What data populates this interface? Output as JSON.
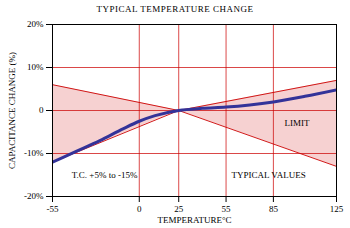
{
  "chart_data": {
    "type": "line",
    "title": "TYPICAL TEMPERATURE CHANGE",
    "x_label": "TEMPERATURE°C",
    "y_label": "CAPACITANCE CHANGE (%)",
    "xlim": [
      -55,
      125
    ],
    "xticks": [
      -55,
      0,
      25,
      55,
      85,
      125
    ],
    "ylim": [
      -20,
      20
    ],
    "yticks": [
      {
        "value": 20,
        "label": "20%"
      },
      {
        "value": 10,
        "label": "10%"
      },
      0,
      {
        "value": -10,
        "label": "-10%"
      },
      {
        "value": -20,
        "label": "-20%"
      }
    ],
    "grid": true,
    "series": [
      {
        "name": "LIMIT",
        "type": "area",
        "color": "#cc0000",
        "x": [
          -55,
          25,
          125
        ],
        "values": [
          6,
          0,
          7
        ],
        "low": [
          -12,
          0,
          -13
        ]
      },
      {
        "name": "TYPICAL VALUES",
        "type": "line",
        "color": "#333399",
        "x": [
          -55,
          -40,
          -25,
          -10,
          0,
          10,
          25,
          40,
          55,
          70,
          85,
          105,
          125
        ],
        "values": [
          -12,
          -9.5,
          -7,
          -4.2,
          -2.5,
          -1.2,
          0,
          0.5,
          0.8,
          1.3,
          2,
          3.3,
          4.8
        ]
      }
    ],
    "annotations": [
      {
        "text": "LIMIT",
        "x": 100,
        "y": -3
      },
      {
        "text": "T.C. +5% to -15%",
        "x": -22,
        "y": -15
      },
      {
        "text": "TYPICAL VALUES",
        "x": 82,
        "y": -15
      }
    ]
  }
}
